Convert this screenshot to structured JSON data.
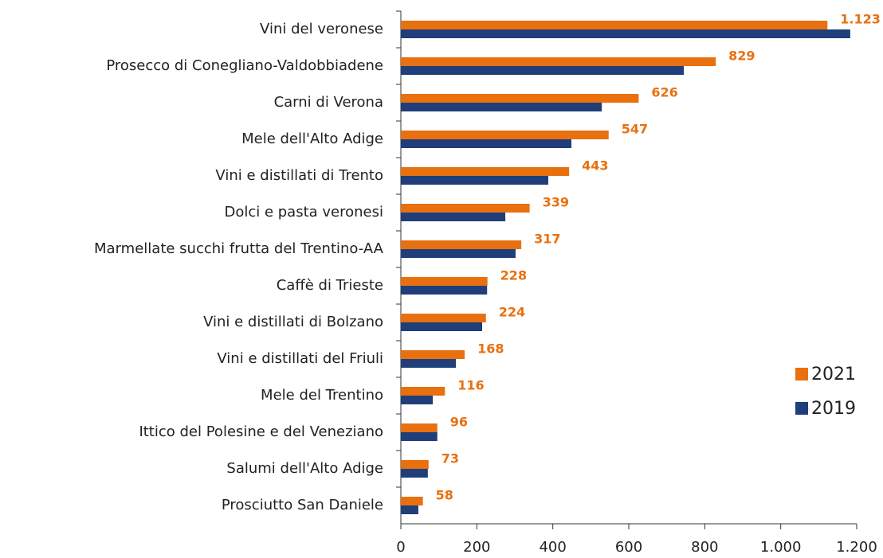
{
  "chart_data": {
    "type": "bar",
    "orientation": "horizontal",
    "categories": [
      "Vini del veronese",
      "Prosecco di Conegliano-Valdobbiadene",
      "Carni di Verona",
      "Mele dell'Alto Adige",
      "Vini e distillati di Trento",
      "Dolci e pasta veronesi",
      "Marmellate succhi frutta del Trentino-AA",
      "Caffè di Trieste",
      "Vini e distillati di Bolzano",
      "Vini e distillati del Friuli",
      "Mele del Trentino",
      "Ittico del Polesine e del Veneziano",
      "Salumi dell'Alto Adige",
      "Prosciutto San Daniele"
    ],
    "series": [
      {
        "name": "2021",
        "color": "#E9700F",
        "values": [
          1123,
          829,
          626,
          547,
          443,
          339,
          317,
          228,
          224,
          168,
          116,
          96,
          73,
          58
        ],
        "value_labels": [
          "1.123",
          "829",
          "626",
          "547",
          "443",
          "339",
          "317",
          "228",
          "224",
          "168",
          "116",
          "96",
          "73",
          "58"
        ]
      },
      {
        "name": "2019",
        "color": "#1F3E7A",
        "values": [
          1183,
          745,
          529,
          449,
          388,
          275,
          302,
          227,
          214,
          145,
          84,
          96,
          71,
          46
        ]
      }
    ],
    "xlim": [
      0,
      1200
    ],
    "xticks": [
      0,
      200,
      400,
      600,
      800,
      {
        "value": 1000,
        "label": "1.000"
      },
      {
        "value": 1200,
        "label": "1.200"
      }
    ],
    "legend": "right"
  }
}
